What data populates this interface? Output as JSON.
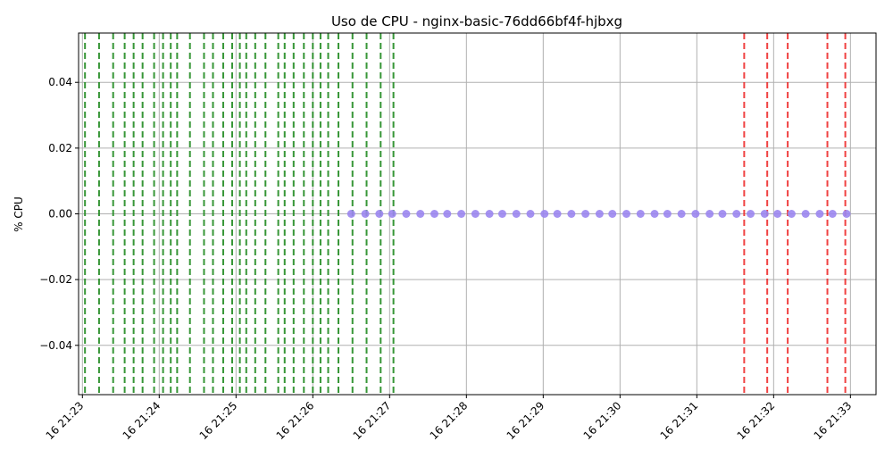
{
  "chart_data": {
    "type": "scatter",
    "title": "Uso de CPU - nginx-basic-76dd66bf4f-hjbxg",
    "xlabel": "",
    "ylabel": "% CPU",
    "x_range": [
      "16 21:22:57",
      "16 21:33:20"
    ],
    "ylim": [
      -0.055,
      0.055
    ],
    "grid": true,
    "x_ticks": [
      "16 21:23",
      "16 21:24",
      "16 21:25",
      "16 21:26",
      "16 21:27",
      "16 21:28",
      "16 21:29",
      "16 21:30",
      "16 21:31",
      "16 21:32",
      "16 21:33"
    ],
    "y_ticks": [
      "0.04",
      "0.02",
      "0.00",
      "−0.02",
      "−0.04"
    ],
    "y_tick_values": [
      0.04,
      0.02,
      0.0,
      -0.02,
      -0.04
    ],
    "series": [
      {
        "color": "#9b86f0",
        "x": [
          "16 21:26:30",
          "16 21:26:41",
          "16 21:26:52",
          "16 21:27:02",
          "16 21:27:13",
          "16 21:27:24",
          "16 21:27:35",
          "16 21:27:45",
          "16 21:27:56",
          "16 21:28:07",
          "16 21:28:18",
          "16 21:28:28",
          "16 21:28:39",
          "16 21:28:50",
          "16 21:29:01",
          "16 21:29:11",
          "16 21:29:22",
          "16 21:29:33",
          "16 21:29:44",
          "16 21:29:54",
          "16 21:30:05",
          "16 21:30:16",
          "16 21:30:27",
          "16 21:30:37",
          "16 21:30:48",
          "16 21:30:59",
          "16 21:31:10",
          "16 21:31:20",
          "16 21:31:31",
          "16 21:31:42",
          "16 21:31:53",
          "16 21:32:03",
          "16 21:32:14",
          "16 21:32:25",
          "16 21:32:36",
          "16 21:32:46",
          "16 21:32:57"
        ],
        "y": [
          0,
          0,
          0,
          0,
          0,
          0,
          0,
          0,
          0,
          0,
          0,
          0,
          0,
          0,
          0,
          0,
          0,
          0,
          0,
          0,
          0,
          0,
          0,
          0,
          0,
          0,
          0,
          0,
          0,
          0,
          0,
          0,
          0,
          0,
          0,
          0,
          0
        ]
      }
    ],
    "green_event_lines": [
      "16 21:23:02",
      "16 21:23:13",
      "16 21:23:24",
      "16 21:23:33",
      "16 21:23:40",
      "16 21:23:47",
      "16 21:23:56",
      "16 21:24:03",
      "16 21:24:09",
      "16 21:24:14",
      "16 21:24:24",
      "16 21:24:35",
      "16 21:24:42",
      "16 21:24:50",
      "16 21:24:57",
      "16 21:25:03",
      "16 21:25:08",
      "16 21:25:15",
      "16 21:25:23",
      "16 21:25:33",
      "16 21:25:38",
      "16 21:25:45",
      "16 21:25:53",
      "16 21:26:00",
      "16 21:26:06",
      "16 21:26:12",
      "16 21:26:20",
      "16 21:26:31",
      "16 21:26:42",
      "16 21:26:53",
      "16 21:27:03"
    ],
    "red_event_lines": [
      "16 21:31:37",
      "16 21:31:55",
      "16 21:32:11",
      "16 21:32:42",
      "16 21:32:56"
    ],
    "colors": {
      "points": "#9b86f0",
      "green_lines": "#228b22",
      "red_lines": "#ee2222",
      "grid": "#b0b0b0"
    }
  }
}
